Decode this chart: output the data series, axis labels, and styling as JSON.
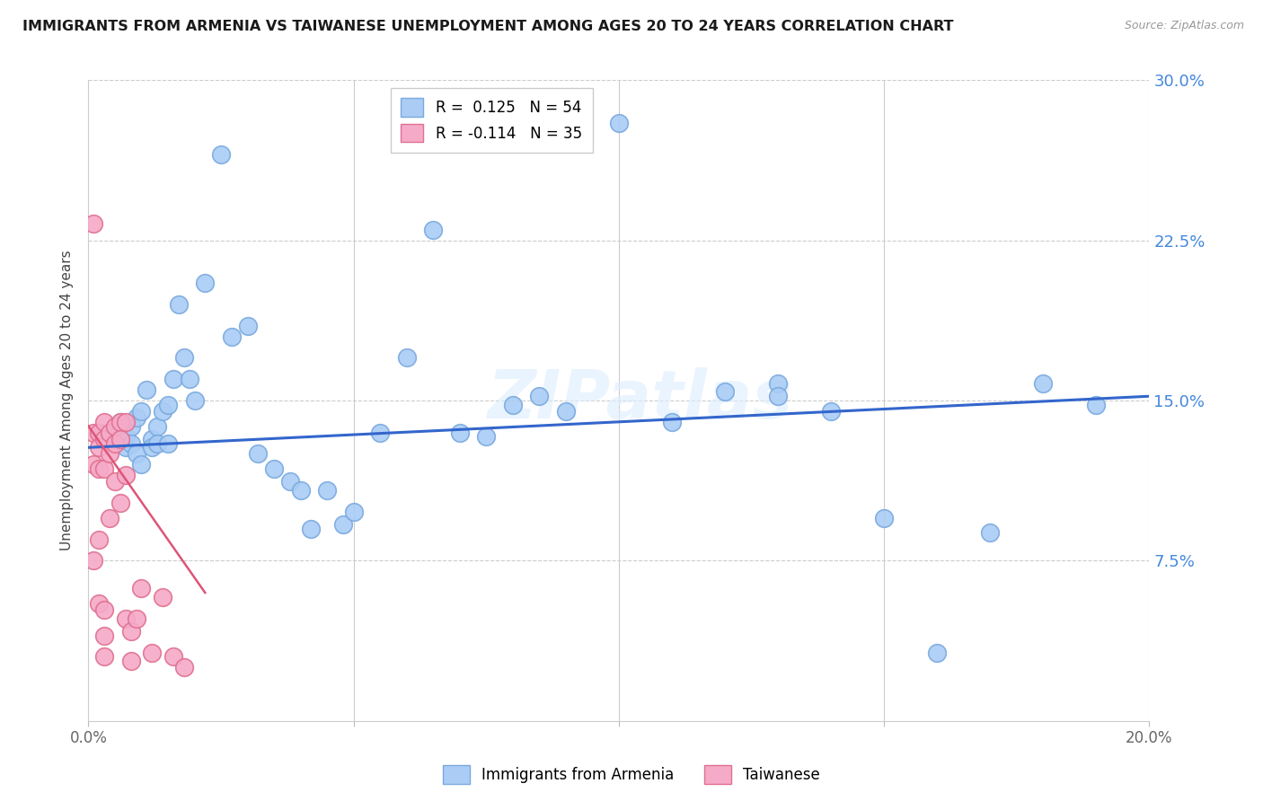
{
  "title": "IMMIGRANTS FROM ARMENIA VS TAIWANESE UNEMPLOYMENT AMONG AGES 20 TO 24 YEARS CORRELATION CHART",
  "source": "Source: ZipAtlas.com",
  "ylabel": "Unemployment Among Ages 20 to 24 years",
  "xlim": [
    0.0,
    0.2
  ],
  "ylim": [
    0.0,
    0.3
  ],
  "yticks": [
    0.0,
    0.075,
    0.15,
    0.225,
    0.3
  ],
  "ytick_labels": [
    "",
    "7.5%",
    "15.0%",
    "22.5%",
    "30.0%"
  ],
  "xticks": [
    0.0,
    0.05,
    0.1,
    0.15,
    0.2
  ],
  "xtick_labels": [
    "0.0%",
    "",
    "",
    "",
    "20.0%"
  ],
  "blue_R": 0.125,
  "blue_N": 54,
  "pink_R": -0.114,
  "pink_N": 35,
  "blue_color": "#aaccf5",
  "blue_edge": "#7aaade",
  "pink_color": "#f5aac8",
  "pink_edge": "#e07090",
  "trend_blue_color": "#3366cc",
  "trend_pink_color": "#dd5577",
  "watermark": "ZIPatlas",
  "blue_scatter_x": [
    0.005,
    0.006,
    0.007,
    0.007,
    0.008,
    0.008,
    0.009,
    0.009,
    0.01,
    0.01,
    0.011,
    0.012,
    0.012,
    0.013,
    0.013,
    0.014,
    0.015,
    0.015,
    0.016,
    0.017,
    0.018,
    0.019,
    0.02,
    0.022,
    0.025,
    0.027,
    0.03,
    0.032,
    0.035,
    0.038,
    0.04,
    0.042,
    0.045,
    0.048,
    0.05,
    0.055,
    0.06,
    0.065,
    0.07,
    0.075,
    0.08,
    0.09,
    0.1,
    0.11,
    0.12,
    0.13,
    0.14,
    0.15,
    0.16,
    0.17,
    0.18,
    0.19,
    0.13,
    0.085
  ],
  "blue_scatter_y": [
    0.135,
    0.14,
    0.133,
    0.128,
    0.138,
    0.13,
    0.142,
    0.125,
    0.145,
    0.12,
    0.155,
    0.132,
    0.128,
    0.138,
    0.13,
    0.145,
    0.148,
    0.13,
    0.16,
    0.195,
    0.17,
    0.16,
    0.15,
    0.205,
    0.265,
    0.18,
    0.185,
    0.125,
    0.118,
    0.112,
    0.108,
    0.09,
    0.108,
    0.092,
    0.098,
    0.135,
    0.17,
    0.23,
    0.135,
    0.133,
    0.148,
    0.145,
    0.28,
    0.14,
    0.154,
    0.158,
    0.145,
    0.095,
    0.032,
    0.088,
    0.158,
    0.148,
    0.152,
    0.152
  ],
  "pink_scatter_x": [
    0.001,
    0.001,
    0.001,
    0.001,
    0.002,
    0.002,
    0.002,
    0.002,
    0.002,
    0.003,
    0.003,
    0.003,
    0.003,
    0.003,
    0.003,
    0.004,
    0.004,
    0.004,
    0.005,
    0.005,
    0.005,
    0.006,
    0.006,
    0.006,
    0.007,
    0.007,
    0.007,
    0.008,
    0.008,
    0.009,
    0.01,
    0.012,
    0.014,
    0.016,
    0.018
  ],
  "pink_scatter_y": [
    0.233,
    0.135,
    0.12,
    0.075,
    0.135,
    0.128,
    0.118,
    0.085,
    0.055,
    0.14,
    0.132,
    0.118,
    0.052,
    0.04,
    0.03,
    0.135,
    0.125,
    0.095,
    0.138,
    0.13,
    0.112,
    0.14,
    0.132,
    0.102,
    0.14,
    0.115,
    0.048,
    0.042,
    0.028,
    0.048,
    0.062,
    0.032,
    0.058,
    0.03,
    0.025
  ],
  "blue_trend_x": [
    0.0,
    0.2
  ],
  "blue_trend_y": [
    0.128,
    0.152
  ],
  "pink_trend_x": [
    0.0,
    0.022
  ],
  "pink_trend_y": [
    0.138,
    0.06
  ]
}
